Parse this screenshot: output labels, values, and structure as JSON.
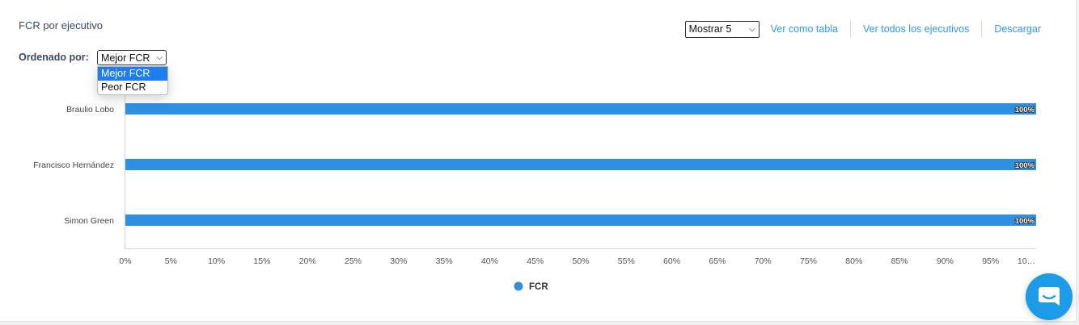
{
  "header": {
    "title": "FCR por ejecutivo",
    "show_select": "Mostrar 5",
    "links": [
      "Ver como tabla",
      "Ver todos los ejecutivos",
      "Descargar"
    ]
  },
  "sort": {
    "label": "Ordenado por:",
    "selected": "Mejor FCR",
    "options": [
      "Mejor FCR",
      "Peor FCR"
    ]
  },
  "colors": {
    "accent": "#2d9be8",
    "bar": "#2f8fe0",
    "select_highlight": "#1e7ef0"
  },
  "chart_data": {
    "type": "bar",
    "orientation": "horizontal",
    "categories": [
      "Braulio Lobo",
      "Francisco Hernández",
      "Simon Green"
    ],
    "series": [
      {
        "name": "FCR",
        "values": [
          100,
          100,
          100
        ]
      }
    ],
    "data_labels": [
      "100%",
      "100%",
      "100%"
    ],
    "xlim": [
      0,
      100
    ],
    "xticks": [
      "0%",
      "5%",
      "10%",
      "15%",
      "20%",
      "25%",
      "30%",
      "35%",
      "40%",
      "45%",
      "50%",
      "55%",
      "60%",
      "65%",
      "70%",
      "75%",
      "80%",
      "85%",
      "90%",
      "95%",
      "10…"
    ],
    "legend": "bottom-center",
    "grid": false
  },
  "chat": {
    "icon": "chat-bubble-icon"
  }
}
